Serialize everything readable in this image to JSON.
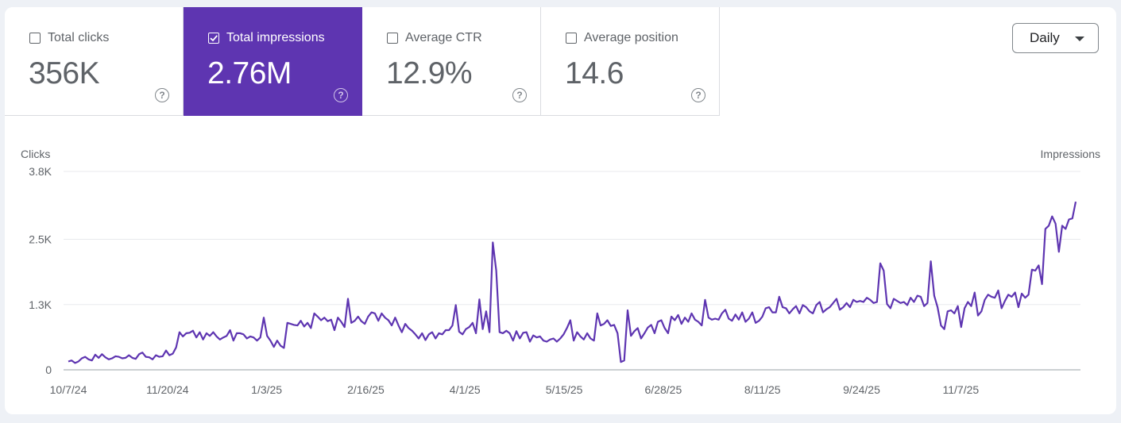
{
  "metrics": [
    {
      "label": "Total clicks",
      "value": "356K",
      "checked": false
    },
    {
      "label": "Total impressions",
      "value": "2.76M",
      "checked": true
    },
    {
      "label": "Average CTR",
      "value": "12.9%",
      "checked": false
    },
    {
      "label": "Average position",
      "value": "14.6",
      "checked": false
    }
  ],
  "help_glyph": "?",
  "period": {
    "selected": "Daily"
  },
  "colors": {
    "accent": "#5e35b1",
    "line": "#5e35b1"
  },
  "chart_data": {
    "type": "line",
    "title": "",
    "left_axis_title": "Clicks",
    "right_axis_title": "Impressions",
    "y_ticks": [
      "0",
      "1.3K",
      "2.5K",
      "3.8K"
    ],
    "x_ticks": [
      "10/7/24",
      "11/20/24",
      "1/3/25",
      "2/16/25",
      "4/1/25",
      "5/15/25",
      "6/28/25",
      "8/11/25",
      "9/24/25",
      "11/7/25"
    ],
    "ylim": [
      0,
      3800
    ],
    "grid": true,
    "series": [
      {
        "name": "Impressions",
        "x_start": "2024-10-07",
        "x_end": "2025-12-28",
        "values": [
          160,
          180,
          130,
          160,
          220,
          250,
          200,
          180,
          290,
          230,
          300,
          240,
          200,
          220,
          260,
          250,
          220,
          230,
          280,
          230,
          210,
          300,
          330,
          250,
          240,
          200,
          280,
          250,
          260,
          370,
          280,
          310,
          430,
          720,
          640,
          700,
          710,
          750,
          620,
          720,
          580,
          700,
          650,
          720,
          640,
          580,
          620,
          650,
          760,
          560,
          700,
          700,
          680,
          600,
          640,
          620,
          560,
          620,
          1000,
          650,
          560,
          440,
          560,
          460,
          420,
          900,
          880,
          860,
          850,
          940,
          830,
          900,
          800,
          1080,
          1020,
          950,
          1000,
          930,
          960,
          760,
          1000,
          920,
          820,
          1360,
          900,
          940,
          1020,
          930,
          880,
          1020,
          1100,
          1080,
          940,
          1080,
          1000,
          950,
          850,
          1000,
          850,
          720,
          880,
          800,
          750,
          680,
          600,
          700,
          570,
          680,
          720,
          600,
          700,
          680,
          760,
          760,
          850,
          1240,
          730,
          680,
          780,
          820,
          900,
          700,
          1350,
          780,
          1120,
          720,
          2440,
          1900,
          720,
          700,
          750,
          700,
          560,
          740,
          600,
          710,
          720,
          540,
          660,
          620,
          640,
          560,
          540,
          580,
          600,
          540,
          600,
          680,
          800,
          950,
          560,
          720,
          640,
          580,
          700,
          600,
          560,
          1080,
          850,
          880,
          950,
          840,
          860,
          700,
          150,
          180,
          1140,
          650,
          740,
          800,
          600,
          700,
          810,
          860,
          700,
          920,
          950,
          800,
          700,
          1020,
          950,
          1050,
          880,
          1000,
          920,
          1080,
          960,
          920,
          850,
          1340,
          1000,
          960,
          980,
          960,
          1080,
          1150,
          980,
          940,
          1060,
          960,
          1100,
          920,
          980,
          1100,
          900,
          940,
          1020,
          1180,
          1200,
          1100,
          1100,
          1400,
          1200,
          1180,
          1080,
          1160,
          1220,
          1080,
          1240,
          1200,
          1120,
          1080,
          1240,
          1300,
          1100,
          1160,
          1200,
          1280,
          1360,
          1150,
          1200,
          1280,
          1200,
          1340,
          1300,
          1320,
          1300,
          1380,
          1340,
          1280,
          1300,
          2040,
          1900,
          1260,
          1180,
          1360,
          1320,
          1280,
          1300,
          1240,
          1380,
          1300,
          1420,
          1400,
          1220,
          1280,
          2080,
          1420,
          1200,
          850,
          780,
          1120,
          1140,
          1080,
          1220,
          820,
          1180,
          1300,
          1220,
          1480,
          1040,
          1120,
          1340,
          1440,
          1400,
          1380,
          1520,
          1180,
          1320,
          1440,
          1400,
          1480,
          1200,
          1460,
          1380,
          1440,
          1920,
          1900,
          2000,
          1640,
          2700,
          2760,
          2940,
          2800,
          2260,
          2760,
          2700,
          2880,
          2900,
          3220
        ]
      }
    ]
  }
}
